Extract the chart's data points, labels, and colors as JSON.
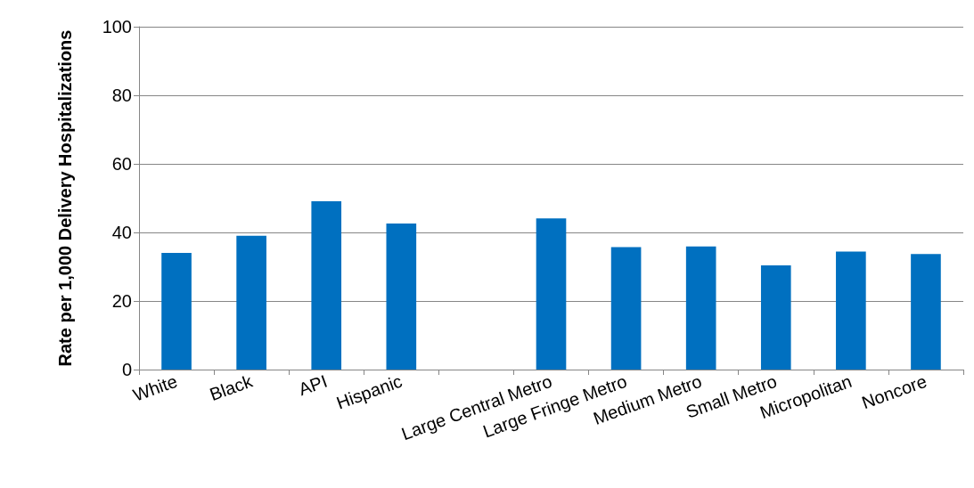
{
  "chart_data": {
    "type": "bar",
    "ylabel": "Rate per 1,000 Delivery Hospitalizations",
    "categories": [
      "White",
      "Black",
      "API",
      "Hispanic",
      null,
      "Large Central Metro",
      "Large Fringe Metro",
      "Medium Metro",
      "Small Metro",
      "Micropolitan",
      "Noncore"
    ],
    "values": [
      34,
      39,
      49.1,
      42.6,
      null,
      44.1,
      35.7,
      35.9,
      30.4,
      34.4,
      33.7
    ],
    "color": "#0070c0",
    "ylim": [
      0,
      100
    ],
    "yticks": [
      0,
      20,
      40,
      60,
      80,
      100
    ],
    "grid": "y"
  }
}
